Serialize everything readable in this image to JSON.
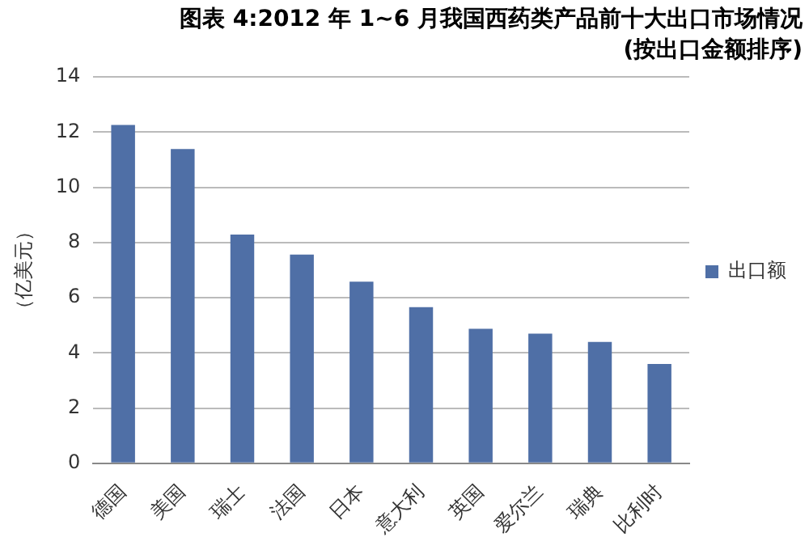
{
  "chart_data": {
    "type": "bar",
    "title": "图表 4:2012 年 1~6 月我国西药类产品前十大出口市场情况",
    "subtitle": "(按出口金额排序)",
    "ylabel": "（亿美元）",
    "categories": [
      "德国",
      "美国",
      "瑞士",
      "法国",
      "日本",
      "意大利",
      "英国",
      "爱尔兰",
      "瑞典",
      "比利时"
    ],
    "series": [
      {
        "name": "出口额",
        "color": "#4f6fa6",
        "values": [
          12.26,
          11.39,
          8.29,
          7.56,
          6.58,
          5.66,
          4.87,
          4.7,
          4.4,
          3.6
        ]
      }
    ],
    "ylim": [
      0,
      14
    ],
    "yticks": [
      0,
      2,
      4,
      6,
      8,
      10,
      12,
      14
    ],
    "grid": "y",
    "legend": "right"
  }
}
